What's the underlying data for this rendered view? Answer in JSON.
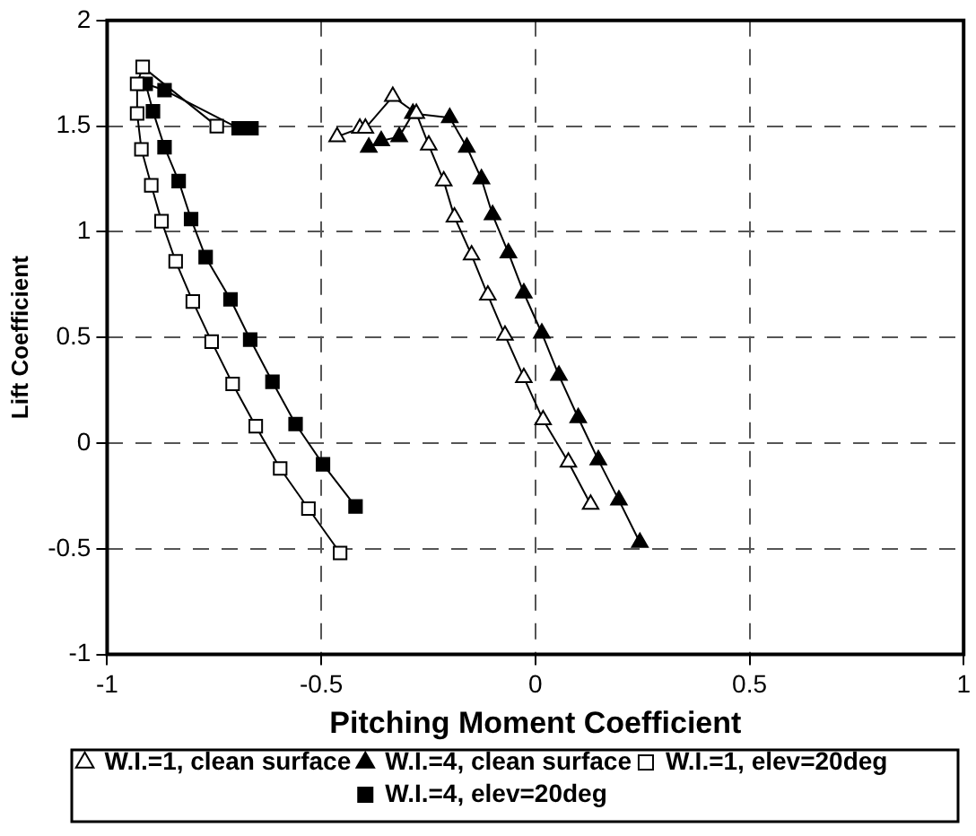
{
  "chart_data": {
    "type": "line",
    "xlabel": "Pitching Moment Coefficient",
    "ylabel": "Lift Coefficient",
    "xlim": [
      -1,
      1
    ],
    "xticks": [
      -1,
      -0.5,
      0,
      0.5,
      1
    ],
    "ylim": [
      -1,
      2
    ],
    "yticks": [
      -1,
      -0.5,
      0,
      0.5,
      1,
      1.5,
      2
    ],
    "grid": true,
    "line_style": "solid",
    "legend": "bottom",
    "series": [
      {
        "name": "W.I.=1, clean surface",
        "color": "#ffffff",
        "marker": "triangle",
        "x": [
          -0.463,
          -0.41,
          -0.397,
          -0.333,
          -0.278,
          -0.249,
          -0.214,
          -0.189,
          -0.149,
          -0.111,
          -0.071,
          -0.027,
          0.018,
          0.077,
          0.129
        ],
        "values": [
          1.45,
          1.49,
          1.49,
          1.64,
          1.56,
          1.41,
          1.24,
          1.07,
          0.89,
          0.7,
          0.51,
          0.31,
          0.11,
          -0.09,
          -0.29
        ]
      },
      {
        "name": "W.I.=4, clean surface",
        "color": "#000000",
        "marker": "triangle",
        "x": [
          -0.389,
          -0.36,
          -0.318,
          -0.286,
          -0.2,
          -0.16,
          -0.126,
          -0.1,
          -0.063,
          -0.027,
          0.015,
          0.055,
          0.1,
          0.147,
          0.195,
          0.244
        ],
        "values": [
          1.4,
          1.43,
          1.45,
          1.56,
          1.54,
          1.4,
          1.25,
          1.08,
          0.9,
          0.71,
          0.52,
          0.32,
          0.12,
          -0.08,
          -0.27,
          -0.47
        ]
      },
      {
        "name": "W.I.=1, elev=20deg",
        "color": "#ffffff",
        "marker": "square",
        "x": [
          -0.456,
          -0.53,
          -0.596,
          -0.653,
          -0.707,
          -0.756,
          -0.8,
          -0.84,
          -0.873,
          -0.897,
          -0.92,
          -0.93,
          -0.93,
          -0.917,
          -0.744
        ],
        "values": [
          -0.52,
          -0.31,
          -0.12,
          0.08,
          0.28,
          0.48,
          0.67,
          0.86,
          1.05,
          1.22,
          1.39,
          1.56,
          1.7,
          1.78,
          1.5
        ]
      },
      {
        "name": "W.I.=4, elev=20deg",
        "color": "#000000",
        "marker": "square",
        "x": [
          -0.42,
          -0.496,
          -0.56,
          -0.614,
          -0.666,
          -0.712,
          -0.77,
          -0.804,
          -0.833,
          -0.866,
          -0.893,
          -0.91,
          -0.866,
          -0.693,
          -0.663
        ],
        "values": [
          -0.3,
          -0.1,
          0.09,
          0.29,
          0.49,
          0.68,
          0.88,
          1.06,
          1.24,
          1.4,
          1.57,
          1.7,
          1.67,
          1.49,
          1.49
        ]
      }
    ]
  }
}
